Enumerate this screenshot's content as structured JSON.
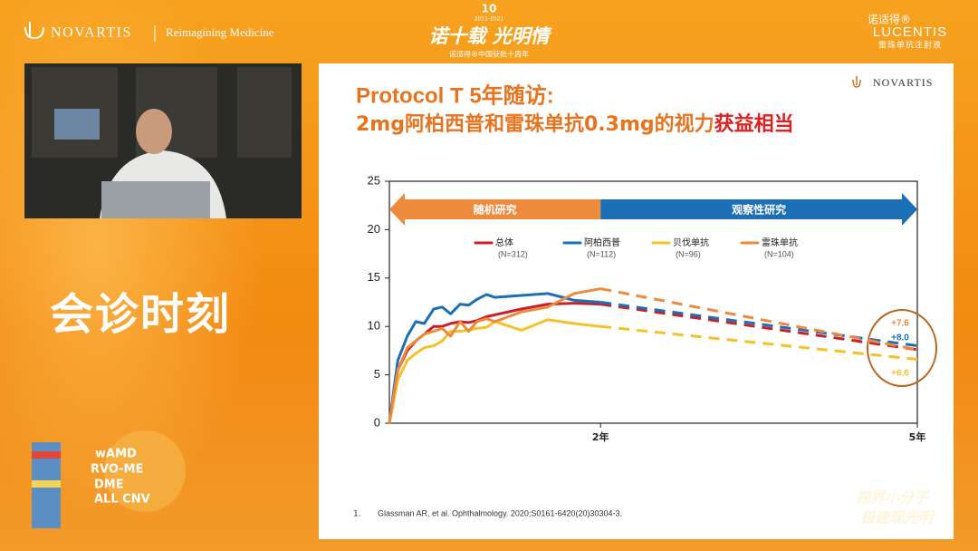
{
  "header": {
    "brand": "NOVARTIS",
    "tagline": "Reimagining Medicine",
    "event_badge": "10",
    "event_years": "2011-2021",
    "event_title": "诺十载 光明情",
    "event_subtitle": "诺适得®中国获批十周年",
    "product_cn": "诺适得®",
    "product_en": "LUCENTIS",
    "product_desc": "雷珠单抗注射液"
  },
  "session_title": "会诊时刻",
  "indications": [
    "wAMD",
    "RVO-ME",
    "DME",
    "ALL CNV"
  ],
  "slogan": [
    "视界小分子",
    "极速现光明"
  ],
  "slide": {
    "logo": "NOVARTIS",
    "title_line1": "Protocol T 5年随访:",
    "title_line2": "2mg阿柏西普和雷珠单抗0.3mg的视力",
    "title_highlight": "获益相当",
    "reference_number": "1.",
    "reference_text": "Glassman AR, et al. Ophthalmology. 2020;S0161-6420(20)30304-3."
  },
  "chart_data": {
    "type": "line",
    "x": [
      0,
      0.08,
      0.17,
      0.25,
      0.33,
      0.42,
      0.5,
      0.58,
      0.67,
      0.75,
      0.83,
      0.92,
      1.0,
      1.25,
      1.5,
      1.75,
      2,
      5
    ],
    "xlim": [
      0,
      5
    ],
    "xticks": [
      {
        "value": 2,
        "label": "2年"
      },
      {
        "value": 5,
        "label": "5年"
      }
    ],
    "ylim": [
      0,
      25
    ],
    "yticks": [
      0,
      5,
      10,
      15,
      20,
      25
    ],
    "dash_from_x": 2,
    "phases": [
      {
        "label": "随机研究",
        "from": 0,
        "to": 2,
        "color": "#ee8a3c"
      },
      {
        "label": "观察性研究",
        "from": 2,
        "to": 5,
        "color": "#1a6fb5"
      }
    ],
    "series": [
      {
        "name": "总体",
        "note": "(N=312)",
        "color": "#c8202a",
        "values": [
          0,
          5.5,
          7.5,
          8.5,
          9.2,
          10,
          10,
          10.3,
          10.5,
          10.4,
          10.6,
          11,
          11.2,
          11.8,
          12.3,
          12.4,
          12.3,
          7.6
        ]
      },
      {
        "name": "阿柏西普",
        "note": "(N=112)",
        "color": "#1a6fb5",
        "values": [
          0,
          6.5,
          9,
          10.5,
          10.3,
          11.8,
          12,
          11.3,
          12.3,
          12.2,
          12.8,
          13.3,
          13,
          13.2,
          13.4,
          12.7,
          12.5,
          8.0
        ],
        "value_labels": [
          null,
          null,
          null,
          null,
          null,
          null,
          null,
          null,
          null,
          null,
          null,
          null,
          null,
          null,
          null,
          null,
          null,
          "+8.0"
        ]
      },
      {
        "name": "贝伐单抗",
        "note": "(N=96)",
        "color": "#f5c12b",
        "values": [
          0,
          4.5,
          6.5,
          7.2,
          7.8,
          8,
          8.5,
          9.5,
          9.5,
          9.6,
          9.8,
          9.9,
          10.5,
          9.6,
          10.7,
          10.3,
          10,
          6.6
        ],
        "value_labels": [
          null,
          null,
          null,
          null,
          null,
          null,
          null,
          null,
          null,
          null,
          null,
          null,
          null,
          null,
          null,
          null,
          null,
          "+6.6"
        ]
      },
      {
        "name": "雷珠单抗",
        "note": "(N=104)",
        "color": "#ee8a3c",
        "values": [
          0,
          5.5,
          7.8,
          8.5,
          9.2,
          9.5,
          9.8,
          9,
          10.5,
          9.5,
          10.5,
          10.8,
          10.5,
          11.5,
          12,
          13.4,
          13.9,
          7.6
        ],
        "value_labels": [
          null,
          null,
          null,
          null,
          null,
          null,
          null,
          null,
          null,
          null,
          null,
          null,
          null,
          null,
          null,
          null,
          null,
          "+7.6"
        ]
      }
    ]
  }
}
